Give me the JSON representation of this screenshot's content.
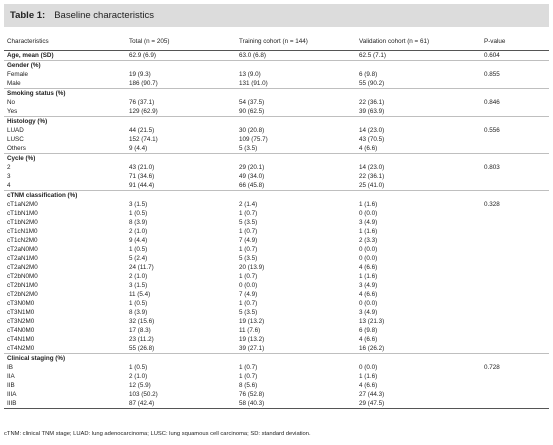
{
  "caption": {
    "number": "Table 1:",
    "title": "Baseline characteristics"
  },
  "headers": [
    "Characteristics",
    "Total (n = 205)",
    "Training cohort (n = 144)",
    "Validation cohort (n = 61)",
    "P-value"
  ],
  "rows": [
    {
      "label": "Age, mean (SD)",
      "group": true,
      "sep": true,
      "total": "62.9 (6.9)",
      "train": "63.0 (6.8)",
      "valid": "62.5 (7.1)",
      "p": "0.604"
    },
    {
      "label": "Gender (%)",
      "group": true,
      "sep": true,
      "total": "",
      "train": "",
      "valid": "",
      "p": ""
    },
    {
      "label": "Female",
      "group": false,
      "sep": false,
      "total": "19 (9.3)",
      "train": "13 (9.0)",
      "valid": "6 (9.8)",
      "p": "0.855"
    },
    {
      "label": "Male",
      "group": false,
      "sep": false,
      "total": "186 (90.7)",
      "train": "131 (91.0)",
      "valid": "55 (90.2)",
      "p": ""
    },
    {
      "label": "Smoking status (%)",
      "group": true,
      "sep": true,
      "total": "",
      "train": "",
      "valid": "",
      "p": ""
    },
    {
      "label": "No",
      "group": false,
      "sep": false,
      "total": "76 (37.1)",
      "train": "54 (37.5)",
      "valid": "22 (36.1)",
      "p": "0.846"
    },
    {
      "label": "Yes",
      "group": false,
      "sep": false,
      "total": "129 (62.9)",
      "train": "90 (62.5)",
      "valid": "39 (63.9)",
      "p": ""
    },
    {
      "label": "Histology (%)",
      "group": true,
      "sep": true,
      "total": "",
      "train": "",
      "valid": "",
      "p": ""
    },
    {
      "label": "LUAD",
      "group": false,
      "sep": false,
      "total": "44 (21.5)",
      "train": "30 (20.8)",
      "valid": "14 (23.0)",
      "p": "0.556"
    },
    {
      "label": "LUSC",
      "group": false,
      "sep": false,
      "total": "152 (74.1)",
      "train": "109 (75.7)",
      "valid": "43 (70.5)",
      "p": ""
    },
    {
      "label": "Others",
      "group": false,
      "sep": false,
      "total": "9 (4.4)",
      "train": "5 (3.5)",
      "valid": "4 (6.6)",
      "p": ""
    },
    {
      "label": "Cycle (%)",
      "group": true,
      "sep": true,
      "total": "",
      "train": "",
      "valid": "",
      "p": ""
    },
    {
      "label": "2",
      "group": false,
      "sep": false,
      "total": "43 (21.0)",
      "train": "29 (20.1)",
      "valid": "14 (23.0)",
      "p": "0.803"
    },
    {
      "label": "3",
      "group": false,
      "sep": false,
      "total": "71 (34.6)",
      "train": "49 (34.0)",
      "valid": "22 (36.1)",
      "p": ""
    },
    {
      "label": "4",
      "group": false,
      "sep": false,
      "total": "91 (44.4)",
      "train": "66 (45.8)",
      "valid": "25 (41.0)",
      "p": ""
    },
    {
      "label": "cTNM classification (%)",
      "group": true,
      "sep": true,
      "total": "",
      "train": "",
      "valid": "",
      "p": ""
    },
    {
      "label": "cT1aN2M0",
      "group": false,
      "sep": false,
      "total": "3 (1.5)",
      "train": "2 (1.4)",
      "valid": "1 (1.6)",
      "p": "0.328"
    },
    {
      "label": "cT1bN1M0",
      "group": false,
      "sep": false,
      "total": "1 (0.5)",
      "train": "1 (0.7)",
      "valid": "0 (0.0)",
      "p": ""
    },
    {
      "label": "cT1bN2M0",
      "group": false,
      "sep": false,
      "total": "8 (3.9)",
      "train": "5 (3.5)",
      "valid": "3 (4.9)",
      "p": ""
    },
    {
      "label": "cT1cN1M0",
      "group": false,
      "sep": false,
      "total": "2 (1.0)",
      "train": "1 (0.7)",
      "valid": "1 (1.6)",
      "p": ""
    },
    {
      "label": "cT1cN2M0",
      "group": false,
      "sep": false,
      "total": "9 (4.4)",
      "train": "7 (4.9)",
      "valid": "2 (3.3)",
      "p": ""
    },
    {
      "label": "cT2aN0M0",
      "group": false,
      "sep": false,
      "total": "1 (0.5)",
      "train": "1 (0.7)",
      "valid": "0 (0.0)",
      "p": ""
    },
    {
      "label": "cT2aN1M0",
      "group": false,
      "sep": false,
      "total": "5 (2.4)",
      "train": "5 (3.5)",
      "valid": "0 (0.0)",
      "p": ""
    },
    {
      "label": "cT2aN2M0",
      "group": false,
      "sep": false,
      "total": "24 (11.7)",
      "train": "20 (13.9)",
      "valid": "4 (6.6)",
      "p": ""
    },
    {
      "label": "cT2bN0M0",
      "group": false,
      "sep": false,
      "total": "2 (1.0)",
      "train": "1 (0.7)",
      "valid": "1 (1.6)",
      "p": ""
    },
    {
      "label": "cT2bN1M0",
      "group": false,
      "sep": false,
      "total": "3 (1.5)",
      "train": "0 (0.0)",
      "valid": "3 (4.9)",
      "p": ""
    },
    {
      "label": "cT2bN2M0",
      "group": false,
      "sep": false,
      "total": "11 (5.4)",
      "train": "7 (4.9)",
      "valid": "4 (6.6)",
      "p": ""
    },
    {
      "label": "cT3N0M0",
      "group": false,
      "sep": false,
      "total": "1 (0.5)",
      "train": "1 (0.7)",
      "valid": "0 (0.0)",
      "p": ""
    },
    {
      "label": "cT3N1M0",
      "group": false,
      "sep": false,
      "total": "8 (3.9)",
      "train": "5 (3.5)",
      "valid": "3 (4.9)",
      "p": ""
    },
    {
      "label": "cT3N2M0",
      "group": false,
      "sep": false,
      "total": "32 (15.6)",
      "train": "19 (13.2)",
      "valid": "13 (21.3)",
      "p": ""
    },
    {
      "label": "cT4N0M0",
      "group": false,
      "sep": false,
      "total": "17 (8.3)",
      "train": "11 (7.6)",
      "valid": "6 (9.8)",
      "p": ""
    },
    {
      "label": "cT4N1M0",
      "group": false,
      "sep": false,
      "total": "23 (11.2)",
      "train": "19 (13.2)",
      "valid": "4 (6.6)",
      "p": ""
    },
    {
      "label": "cT4N2M0",
      "group": false,
      "sep": false,
      "total": "55 (26.8)",
      "train": "39 (27.1)",
      "valid": "16 (26.2)",
      "p": ""
    },
    {
      "label": "Clinical staging (%)",
      "group": true,
      "sep": true,
      "total": "",
      "train": "",
      "valid": "",
      "p": ""
    },
    {
      "label": "IB",
      "group": false,
      "sep": false,
      "total": "1 (0.5)",
      "train": "1 (0.7)",
      "valid": "0 (0.0)",
      "p": "0.728"
    },
    {
      "label": "IIA",
      "group": false,
      "sep": false,
      "total": "2 (1.0)",
      "train": "1 (0.7)",
      "valid": "1 (1.6)",
      "p": ""
    },
    {
      "label": "IIB",
      "group": false,
      "sep": false,
      "total": "12 (5.9)",
      "train": "8 (5.6)",
      "valid": "4 (6.6)",
      "p": ""
    },
    {
      "label": "IIIA",
      "group": false,
      "sep": false,
      "total": "103 (50.2)",
      "train": "76 (52.8)",
      "valid": "27 (44.3)",
      "p": ""
    },
    {
      "label": "IIIB",
      "group": false,
      "sep": false,
      "total": "87 (42.4)",
      "train": "58 (40.3)",
      "valid": "29 (47.5)",
      "p": ""
    }
  ],
  "footnote": "cTNM: clinical TNM stage; LUAD: lung adenocarcinoma; LUSC: lung squamous cell carcinoma; SD: standard deviation."
}
